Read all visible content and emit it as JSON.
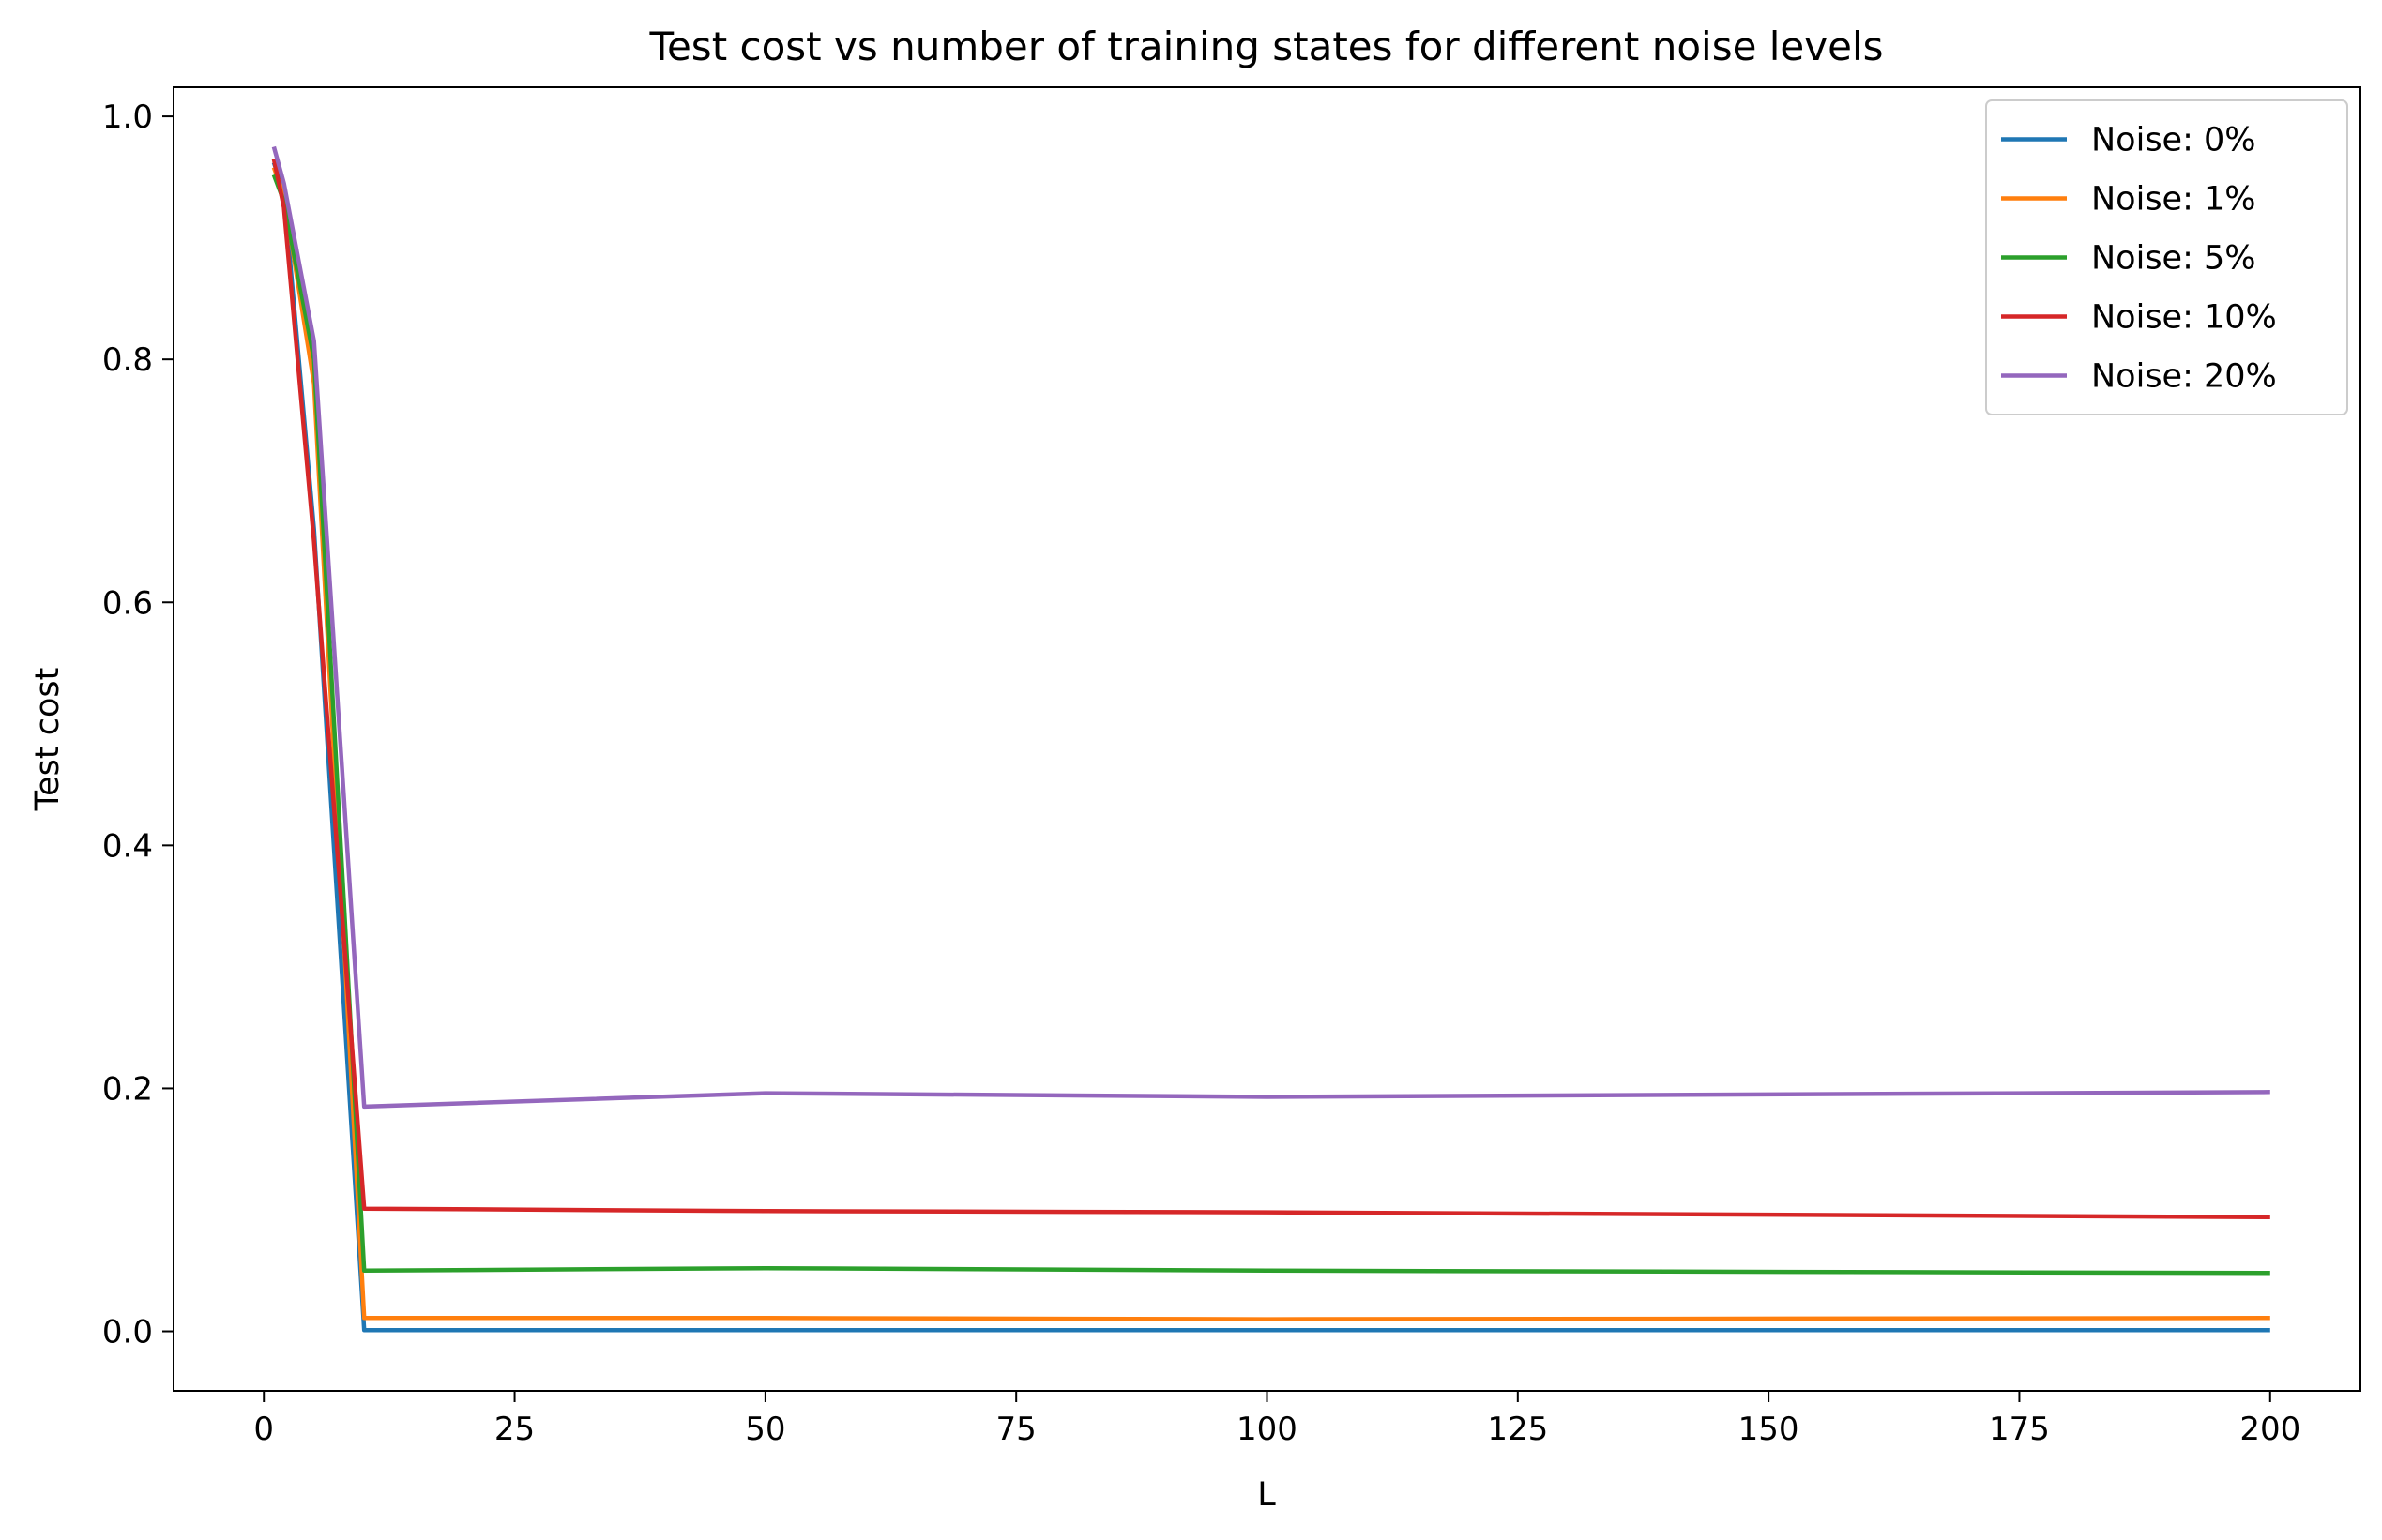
{
  "chart_data": {
    "type": "line",
    "title": "Test cost vs number of training states for different noise levels",
    "xlabel": "L",
    "ylabel": "Test cost",
    "xlim": [
      -9,
      209
    ],
    "ylim": [
      -0.049,
      1.024
    ],
    "xticks": [
      0,
      25,
      50,
      75,
      100,
      125,
      150,
      175,
      200
    ],
    "yticks": [
      0.0,
      0.2,
      0.4,
      0.6,
      0.8,
      1.0
    ],
    "xtick_labels": [
      "0",
      "25",
      "50",
      "75",
      "100",
      "125",
      "150",
      "175",
      "200"
    ],
    "ytick_labels": [
      "0.0",
      "0.2",
      "0.4",
      "0.6",
      "0.8",
      "1.0"
    ],
    "grid": false,
    "legend_position": "upper-right",
    "series": [
      {
        "name": "Noise: 0%",
        "color": "#1f77b4",
        "x": [
          1,
          2,
          5,
          10,
          50,
          100,
          200
        ],
        "y": [
          0.962,
          0.938,
          0.66,
          0.001,
          0.001,
          0.001,
          0.001
        ]
      },
      {
        "name": "Noise: 1%",
        "color": "#ff7f0e",
        "x": [
          1,
          2,
          5,
          10,
          50,
          100,
          200
        ],
        "y": [
          0.958,
          0.935,
          0.78,
          0.011,
          0.011,
          0.01,
          0.011
        ]
      },
      {
        "name": "Noise: 5%",
        "color": "#2ca02c",
        "x": [
          1,
          2,
          5,
          10,
          50,
          100,
          200
        ],
        "y": [
          0.952,
          0.93,
          0.8,
          0.05,
          0.052,
          0.05,
          0.048
        ]
      },
      {
        "name": "Noise: 10%",
        "color": "#d62728",
        "x": [
          1,
          2,
          5,
          10,
          50,
          100,
          200
        ],
        "y": [
          0.965,
          0.925,
          0.65,
          0.101,
          0.099,
          0.098,
          0.094
        ]
      },
      {
        "name": "Noise: 20%",
        "color": "#9467bd",
        "x": [
          1,
          2,
          5,
          10,
          50,
          100,
          200
        ],
        "y": [
          0.975,
          0.945,
          0.815,
          0.185,
          0.196,
          0.193,
          0.197
        ]
      }
    ]
  }
}
